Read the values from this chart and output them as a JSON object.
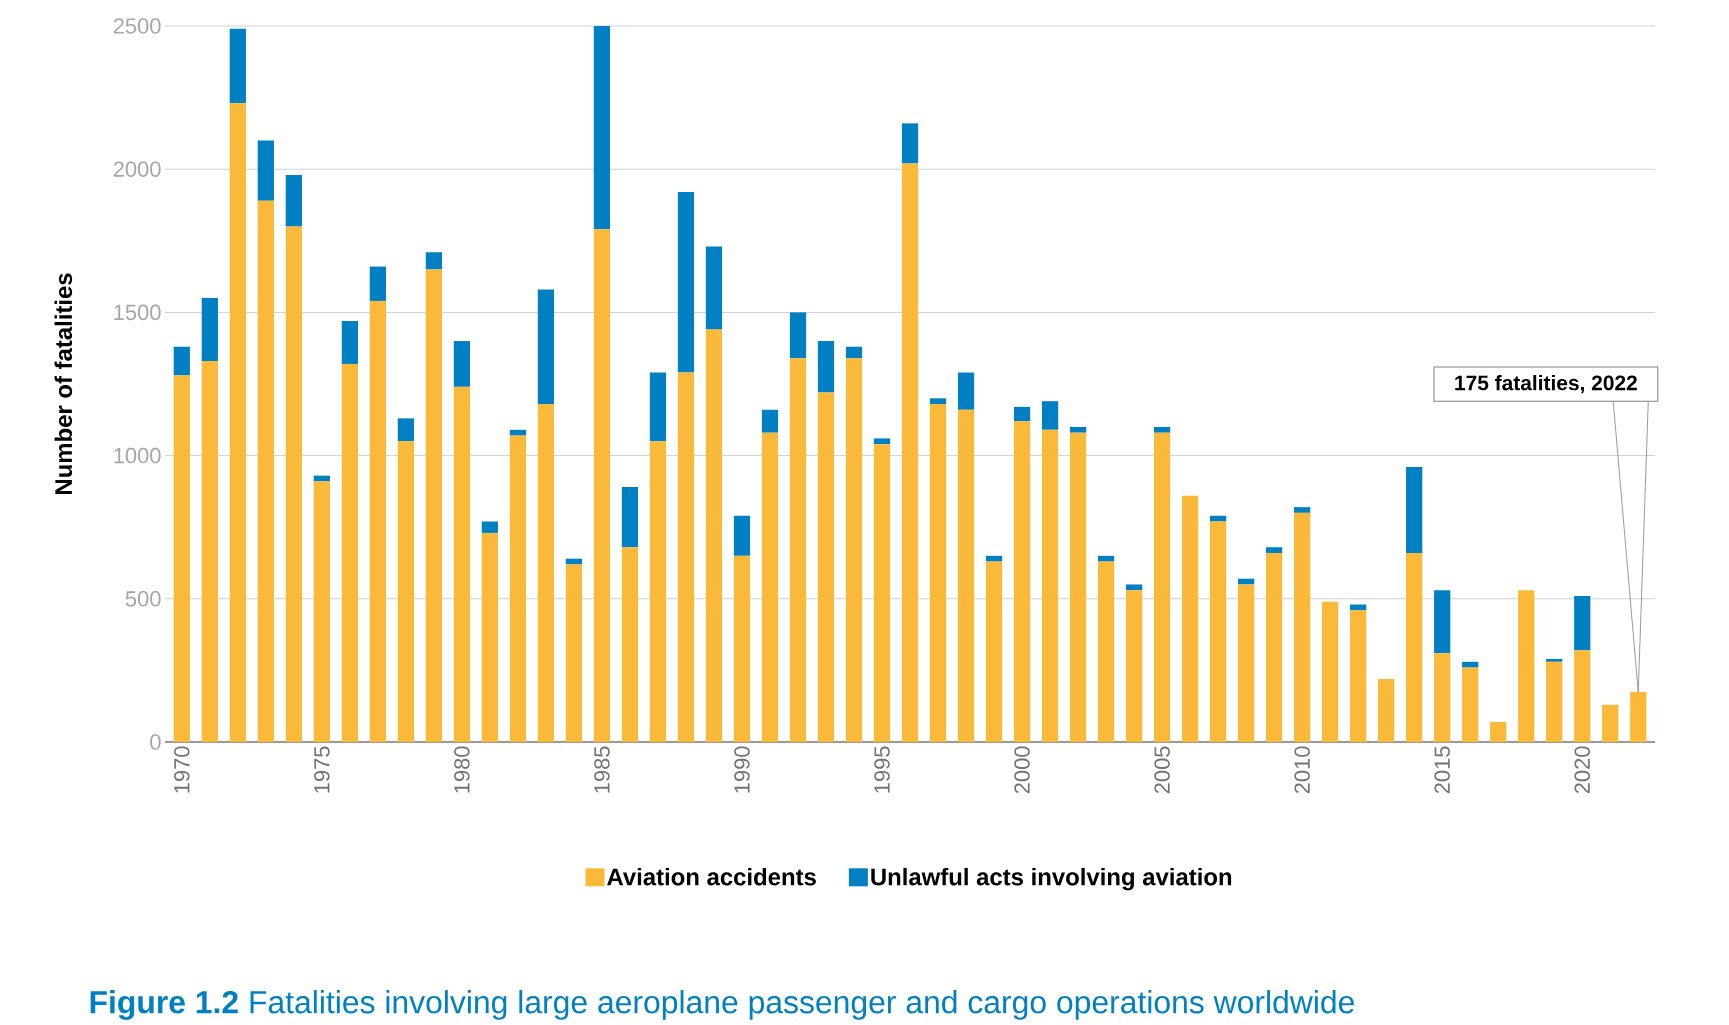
{
  "chart_data": {
    "type": "bar",
    "stacked": true,
    "title": "**Figure 1.2**    Fatalities involving large aeroplane passenger and cargo operations worldwide",
    "ylabel": "Number of fatalities",
    "x": [
      1970,
      1971,
      1972,
      1973,
      1974,
      1975,
      1976,
      1977,
      1978,
      1979,
      1980,
      1981,
      1982,
      1983,
      1984,
      1985,
      1986,
      1987,
      1988,
      1989,
      1990,
      1991,
      1992,
      1993,
      1994,
      1995,
      1996,
      1997,
      1998,
      1999,
      2000,
      2001,
      2002,
      2003,
      2004,
      2005,
      2006,
      2007,
      2008,
      2009,
      2010,
      2011,
      2012,
      2013,
      2014,
      2015,
      2016,
      2017,
      2018,
      2019,
      2020,
      2021,
      2022
    ],
    "series": [
      {
        "name": "Aviation accidents",
        "color": "#fbb93a",
        "values": [
          1280,
          1330,
          2230,
          1890,
          1800,
          910,
          1320,
          1540,
          1050,
          1650,
          1240,
          730,
          1070,
          1180,
          620,
          1790,
          680,
          1050,
          1290,
          1440,
          650,
          1080,
          1340,
          1220,
          1340,
          1040,
          2020,
          1180,
          1160,
          630,
          1120,
          1090,
          1080,
          630,
          530,
          1080,
          860,
          770,
          550,
          660,
          800,
          490,
          460,
          220,
          660,
          310,
          260,
          70,
          530,
          280,
          320,
          130,
          175
        ]
      },
      {
        "name": "Unlawful acts involving aviation",
        "color": "#0080c3",
        "values": [
          100,
          220,
          260,
          210,
          180,
          20,
          150,
          120,
          80,
          60,
          160,
          40,
          20,
          400,
          20,
          710,
          210,
          240,
          630,
          290,
          140,
          80,
          160,
          180,
          40,
          20,
          140,
          20,
          130,
          20,
          50,
          100,
          20,
          20,
          20,
          20,
          0,
          20,
          20,
          20,
          20,
          0,
          20,
          0,
          300,
          220,
          20,
          0,
          0,
          10,
          190,
          0,
          0
        ]
      }
    ],
    "xlim": [
      1969.4,
      2022.6
    ],
    "xticks": [
      1970,
      1975,
      1980,
      1985,
      1990,
      1995,
      2000,
      2005,
      2010,
      2015,
      2020
    ],
    "ylim": [
      0,
      2500
    ],
    "yticks": [
      0,
      500,
      1000,
      1500,
      2000,
      2500
    ],
    "grid": "y",
    "legend": "bottom",
    "annotations": [
      "175 fatalities, 2022"
    ]
  }
}
